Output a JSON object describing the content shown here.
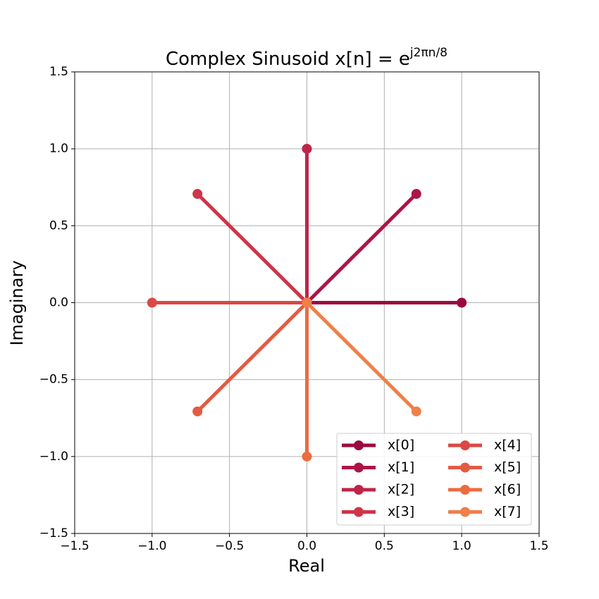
{
  "chart_data": {
    "type": "line",
    "title": {
      "text": "Complex Sinusoid x[n] = e",
      "superscript": "j2πn/8"
    },
    "x_label": "Real",
    "y_label": "Imaginary",
    "xlim": [
      -1.5,
      1.5
    ],
    "ylim": [
      -1.5,
      1.5
    ],
    "xticks": [
      {
        "value": -1.5,
        "label": "−1.5"
      },
      {
        "value": -1.0,
        "label": "−1.0"
      },
      {
        "value": -0.5,
        "label": "−0.5"
      },
      {
        "value": 0,
        "label": "0.0"
      },
      0.5,
      {
        "value": 1,
        "label": "1.0"
      },
      1.5
    ],
    "yticks": [
      {
        "value": -1.5,
        "label": "−1.5"
      },
      {
        "value": -1.0,
        "label": "−1.0"
      },
      {
        "value": -0.5,
        "label": "−0.5"
      },
      {
        "value": 0,
        "label": "0.0"
      },
      0.5,
      {
        "value": 1,
        "label": "1.0"
      },
      1.5
    ],
    "grid": true,
    "legend": "lower right",
    "legend_columns": 2,
    "series": [
      {
        "name": "x[0]",
        "color": "#9b0a3f",
        "x": [
          0,
          1
        ],
        "values": [
          0,
          0
        ]
      },
      {
        "name": "x[1]",
        "color": "#ad1446",
        "x": [
          0,
          0.707
        ],
        "values": [
          0,
          0.707
        ]
      },
      {
        "name": "x[2]",
        "color": "#bf2449",
        "x": [
          0,
          0
        ],
        "values": [
          0,
          1
        ]
      },
      {
        "name": "x[3]",
        "color": "#cf3448",
        "x": [
          0,
          -0.707
        ],
        "values": [
          0,
          0.707
        ]
      },
      {
        "name": "x[4]",
        "color": "#da4845",
        "x": [
          0,
          -1
        ],
        "values": [
          0,
          0
        ]
      },
      {
        "name": "x[5]",
        "color": "#e35b42",
        "x": [
          0,
          -0.707
        ],
        "values": [
          0,
          -0.707
        ]
      },
      {
        "name": "x[6]",
        "color": "#eb6c40",
        "x": [
          0,
          0
        ],
        "values": [
          0,
          -1
        ]
      },
      {
        "name": "x[7]",
        "color": "#f07f49",
        "x": [
          0,
          0.707
        ],
        "values": [
          0,
          -0.707
        ]
      }
    ]
  }
}
